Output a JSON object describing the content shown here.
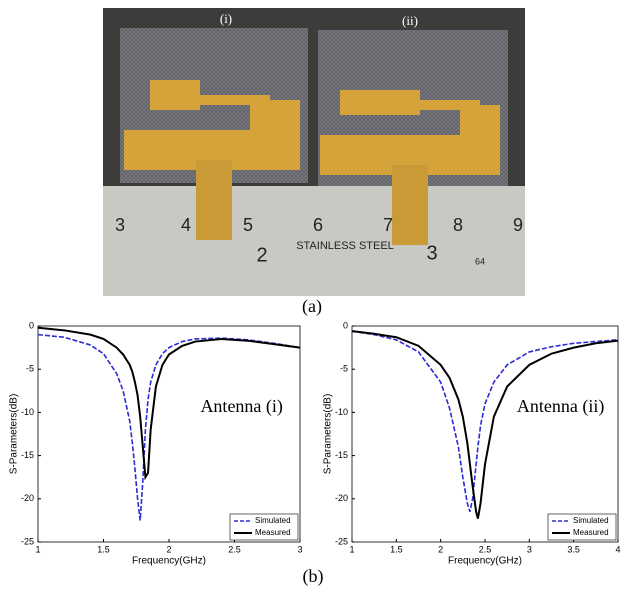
{
  "photo": {
    "labels": [
      "(i)",
      "(ii)"
    ],
    "ruler_top": [
      "3",
      "4",
      "5",
      "6",
      "7",
      "8",
      "9"
    ],
    "ruler_bottom": [
      "2",
      "STAINLESS STEEL",
      "3",
      "64"
    ]
  },
  "captions": [
    "(a)",
    "(b)"
  ],
  "chart_data": [
    {
      "type": "line",
      "xlabel": "Frequency(GHz)",
      "ylabel": "S-Parameters(dB)",
      "annotation": "Antenna (i)",
      "x": [
        1,
        1.2,
        1.4,
        1.5,
        1.6,
        1.65,
        1.7,
        1.72,
        1.74,
        1.76,
        1.78,
        1.8,
        1.82,
        1.84,
        1.86,
        1.9,
        1.95,
        2,
        2.1,
        2.2,
        2.4,
        2.6,
        2.8,
        3
      ],
      "series": [
        {
          "name": "Simulated",
          "color": "#2b2bd6",
          "dash": true,
          "values": [
            -1,
            -1.3,
            -2.2,
            -3.2,
            -5.5,
            -7.5,
            -11,
            -13.5,
            -16.5,
            -20,
            -22.5,
            -18,
            -12,
            -8.5,
            -6.5,
            -4.5,
            -3.2,
            -2.5,
            -1.8,
            -1.5,
            -1.4,
            -1.6,
            -2,
            -2.5
          ]
        },
        {
          "name": "Measured",
          "color": "#000000",
          "dash": false,
          "values": [
            -0.2,
            -0.5,
            -1,
            -1.5,
            -2.5,
            -3.3,
            -4.5,
            -5.3,
            -6.5,
            -8,
            -10.5,
            -14,
            -17.5,
            -17,
            -12,
            -7,
            -4.5,
            -3.3,
            -2.3,
            -1.8,
            -1.5,
            -1.7,
            -2.1,
            -2.5
          ]
        }
      ],
      "xlim": [
        1,
        3
      ],
      "ylim": [
        -25,
        0
      ],
      "xticks": [
        1,
        1.5,
        2,
        2.5,
        3
      ],
      "yticks": [
        0,
        -5,
        -10,
        -15,
        -20,
        -25
      ],
      "legend": "lower right"
    },
    {
      "type": "line",
      "xlabel": "Frequency(GHz)",
      "ylabel": "S-Parameters(dB)",
      "annotation": "Antenna (ii)",
      "x": [
        1,
        1.25,
        1.5,
        1.75,
        2,
        2.1,
        2.2,
        2.25,
        2.3,
        2.33,
        2.36,
        2.4,
        2.42,
        2.45,
        2.5,
        2.6,
        2.75,
        3,
        3.25,
        3.5,
        3.75,
        4
      ],
      "series": [
        {
          "name": "Simulated",
          "color": "#2b2bd6",
          "dash": true,
          "values": [
            -0.6,
            -1,
            -1.6,
            -3,
            -6.5,
            -9.5,
            -14,
            -17.5,
            -20.5,
            -21.5,
            -20,
            -16,
            -14,
            -11.5,
            -9,
            -6.5,
            -4.5,
            -3,
            -2.4,
            -2,
            -1.8,
            -1.6
          ]
        },
        {
          "name": "Measured",
          "color": "#000000",
          "dash": false,
          "values": [
            -0.6,
            -0.9,
            -1.3,
            -2.3,
            -4.5,
            -6,
            -8.5,
            -10.5,
            -13.5,
            -16,
            -18.5,
            -21.5,
            -22.3,
            -20.5,
            -16,
            -10.5,
            -7,
            -4.5,
            -3.2,
            -2.5,
            -2,
            -1.7
          ]
        }
      ],
      "xlim": [
        1,
        4
      ],
      "ylim": [
        -25,
        0
      ],
      "xticks": [
        1,
        1.5,
        2,
        2.5,
        3,
        3.5,
        4
      ],
      "yticks": [
        0,
        -5,
        -10,
        -15,
        -20,
        -25
      ],
      "legend": "lower right"
    }
  ]
}
